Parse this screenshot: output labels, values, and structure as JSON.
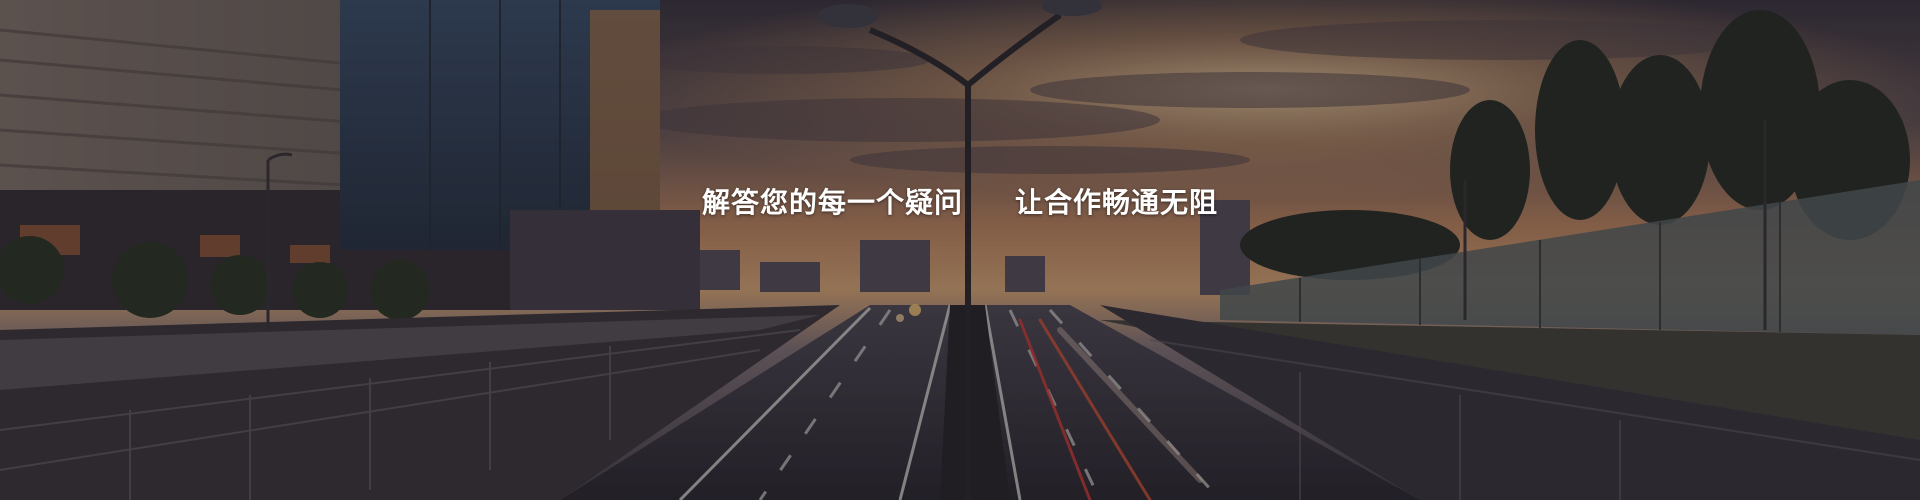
{
  "banner": {
    "headline_left": "解答您的每一个疑问",
    "headline_right": "让合作畅通无阻",
    "scene_description": ""
  },
  "colors": {
    "sky_top": "#3a3440",
    "sky_glow": "#e8a96a",
    "overlay": "#0f0c14",
    "text": "#ffffff"
  }
}
